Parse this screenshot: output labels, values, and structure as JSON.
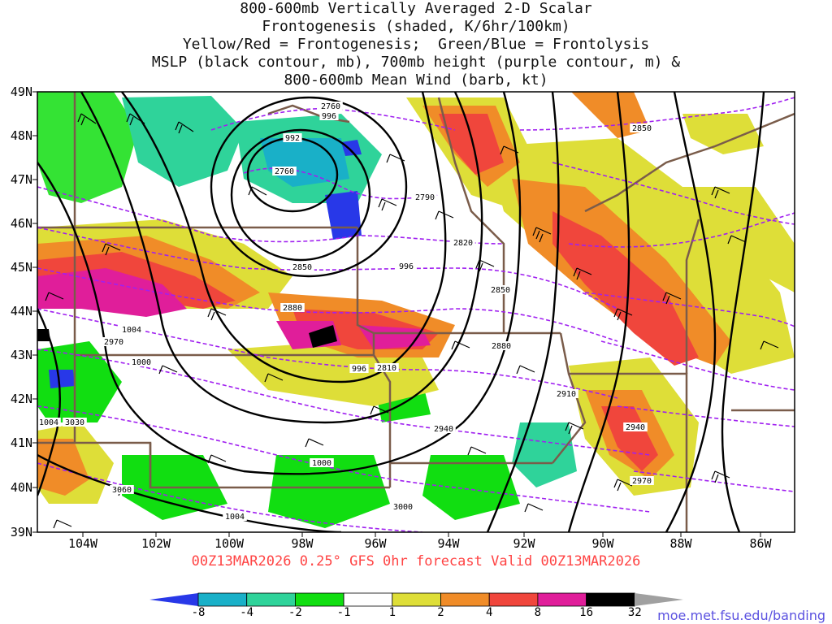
{
  "title": {
    "lines": [
      "800-600mb Vertically Averaged 2-D Scalar",
      "Frontogenesis (shaded, K/6hr/100km)",
      "Yellow/Red = Frontogenesis;  Green/Blue = Frontolysis",
      "MSLP (black contour, mb), 700mb height (purple contour, m) &",
      "800-600mb Mean Wind (barb, kt)"
    ]
  },
  "axes": {
    "lat_labels": [
      "49N",
      "48N",
      "47N",
      "46N",
      "45N",
      "44N",
      "43N",
      "42N",
      "41N",
      "40N",
      "39N"
    ],
    "lon_labels": [
      "104W",
      "102W",
      "100W",
      "98W",
      "96W",
      "94W",
      "92W",
      "90W",
      "88W",
      "86W"
    ]
  },
  "valid_text": "00Z13MAR2026 0.25° GFS 0hr forecast Valid 00Z13MAR2026",
  "colorbar": {
    "labels": [
      "-8",
      "-4",
      "-2",
      "-1",
      "1",
      "2",
      "4",
      "8",
      "16",
      "32"
    ],
    "colors": [
      "#2838e8",
      "#19b0c8",
      "#2fd39a",
      "#11de11",
      "#ffffff",
      "#dede38",
      "#f08c28",
      "#f0463c",
      "#e01e9a",
      "#000000",
      "#a0a0a0"
    ]
  },
  "contour_labels": {
    "mslp": [
      "996",
      "992",
      "996",
      "1004",
      "1000",
      "996",
      "1000",
      "1004",
      "1004"
    ],
    "height": [
      "2760",
      "2760",
      "2790",
      "2820",
      "2850",
      "2850",
      "2880",
      "2970",
      "2810",
      "2880",
      "2910",
      "2940",
      "3030",
      "3060",
      "3000",
      "2970",
      "2850",
      "2940"
    ]
  },
  "colors": {
    "mslp_contour": "#000000",
    "height_contour": "#a020f0",
    "state_borders": "#7a5c4a"
  },
  "credit": "moe.met.fsu.edu/banding"
}
